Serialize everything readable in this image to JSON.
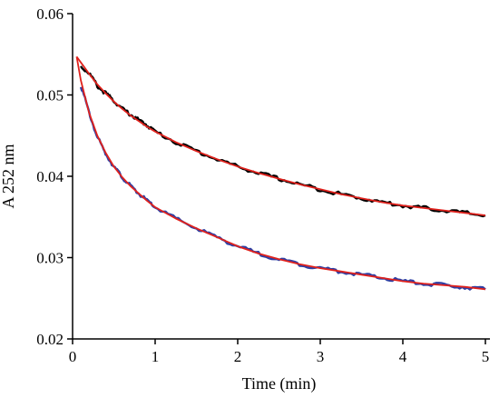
{
  "chart_data": {
    "type": "line",
    "title": "",
    "xlabel": "Time (min)",
    "ylabel": "A 252 nm",
    "xlim": [
      0,
      5
    ],
    "ylim": [
      0.02,
      0.06
    ],
    "xticks": [
      0,
      1,
      2,
      3,
      4,
      5
    ],
    "xtick_labels": [
      "0",
      "1",
      "2",
      "3",
      "4",
      "5"
    ],
    "yticks": [
      0.02,
      0.03,
      0.04,
      0.05,
      0.06
    ],
    "ytick_labels": [
      "0.02",
      "0.03",
      "0.04",
      "0.05",
      "0.06"
    ],
    "grid": false,
    "legend": "none",
    "series": [
      {
        "color": "#000000",
        "style": "noisy-data",
        "x": [
          0.1,
          0.2,
          0.3,
          0.4,
          0.5,
          0.6,
          0.7,
          0.8,
          0.9,
          1.0,
          1.25,
          1.5,
          1.75,
          2.0,
          2.25,
          2.5,
          2.75,
          3.0,
          3.25,
          3.5,
          3.75,
          4.0,
          4.25,
          4.5,
          4.75,
          5.0
        ],
        "values": [
          0.0535,
          0.0527,
          0.0511,
          0.0502,
          0.0493,
          0.0483,
          0.0476,
          0.0469,
          0.0463,
          0.0455,
          0.0442,
          0.0431,
          0.0421,
          0.0412,
          0.0404,
          0.0397,
          0.039,
          0.0384,
          0.0378,
          0.0373,
          0.0368,
          0.0364,
          0.0361,
          0.0358,
          0.0355,
          0.0352
        ]
      },
      {
        "color": "#2e3fa3",
        "style": "noisy-data",
        "x": [
          0.1,
          0.2,
          0.3,
          0.4,
          0.5,
          0.6,
          0.7,
          0.8,
          0.9,
          1.0,
          1.25,
          1.5,
          1.75,
          2.0,
          2.25,
          2.5,
          2.75,
          3.0,
          3.25,
          3.5,
          3.75,
          4.0,
          4.25,
          4.5,
          4.75,
          5.0
        ],
        "values": [
          0.0512,
          0.0478,
          0.0448,
          0.0428,
          0.0412,
          0.0399,
          0.0388,
          0.0379,
          0.037,
          0.0362,
          0.0348,
          0.0336,
          0.0325,
          0.0314,
          0.0305,
          0.0298,
          0.0292,
          0.0287,
          0.0283,
          0.0279,
          0.0275,
          0.0271,
          0.0268,
          0.0266,
          0.0264,
          0.0261
        ]
      },
      {
        "color": "#e0211c",
        "style": "fit",
        "x": [
          0.05,
          0.1,
          0.2,
          0.3,
          0.4,
          0.5,
          0.6,
          0.7,
          0.8,
          0.9,
          1.0,
          1.25,
          1.5,
          1.75,
          2.0,
          2.25,
          2.5,
          2.75,
          3.0,
          3.25,
          3.5,
          3.75,
          4.0,
          4.25,
          4.5,
          4.75,
          5.0
        ],
        "values": [
          0.0547,
          0.054,
          0.0526,
          0.0513,
          0.0502,
          0.0492,
          0.0483,
          0.0475,
          0.0468,
          0.0461,
          0.0455,
          0.0442,
          0.0431,
          0.0421,
          0.0412,
          0.0404,
          0.0397,
          0.039,
          0.0384,
          0.0378,
          0.0373,
          0.0368,
          0.0364,
          0.0361,
          0.0358,
          0.0355,
          0.0352
        ]
      },
      {
        "color": "#e0211c",
        "style": "fit",
        "x": [
          0.05,
          0.1,
          0.2,
          0.3,
          0.4,
          0.5,
          0.6,
          0.7,
          0.8,
          0.9,
          1.0,
          1.25,
          1.5,
          1.75,
          2.0,
          2.25,
          2.5,
          2.75,
          3.0,
          3.25,
          3.5,
          3.75,
          4.0,
          4.25,
          4.5,
          4.75,
          5.0
        ],
        "values": [
          0.0547,
          0.0518,
          0.0478,
          0.045,
          0.0429,
          0.0412,
          0.0399,
          0.0388,
          0.0379,
          0.037,
          0.0362,
          0.0348,
          0.0336,
          0.0325,
          0.0314,
          0.0305,
          0.0298,
          0.0292,
          0.0287,
          0.0283,
          0.0279,
          0.0275,
          0.0271,
          0.0268,
          0.0266,
          0.0264,
          0.0261
        ]
      }
    ]
  }
}
